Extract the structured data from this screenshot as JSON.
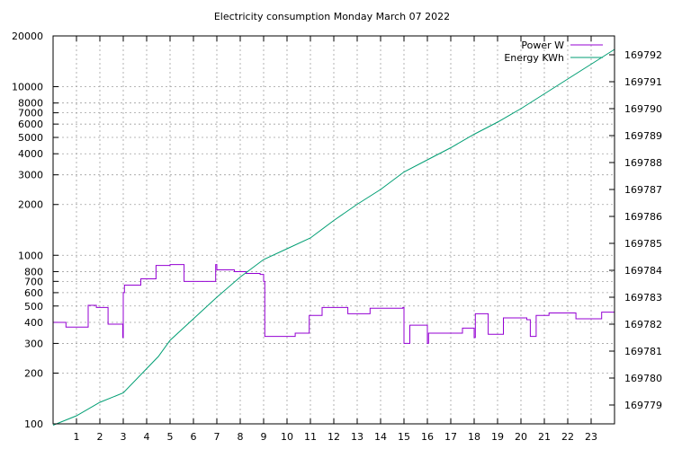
{
  "chart_data": {
    "type": "line",
    "title": "Electricity consumption Monday March 07 2022",
    "xlim": [
      0,
      24
    ],
    "x_ticks": [
      1,
      2,
      3,
      4,
      5,
      6,
      7,
      8,
      9,
      10,
      11,
      12,
      13,
      14,
      15,
      16,
      17,
      18,
      19,
      20,
      21,
      22,
      23
    ],
    "y_left": {
      "scale": "log",
      "ylim": [
        100,
        20000
      ],
      "ticks": [
        {
          "value": 100,
          "label": "100"
        },
        {
          "value": 200,
          "label": "200"
        },
        {
          "value": 300,
          "label": "300"
        },
        {
          "value": 400,
          "label": "400"
        },
        {
          "value": 500,
          "label": "500"
        },
        {
          "value": 600,
          "label": "600"
        },
        {
          "value": 700,
          "label": "700"
        },
        {
          "value": 800,
          "label": "800"
        },
        {
          "value": 1000,
          "label": "1000"
        },
        {
          "value": 2000,
          "label": "2000"
        },
        {
          "value": 3000,
          "label": "3000"
        },
        {
          "value": 4000,
          "label": "4000"
        },
        {
          "value": 5000,
          "label": "5000"
        },
        {
          "value": 6000,
          "label": "6000"
        },
        {
          "value": 7000,
          "label": "7000"
        },
        {
          "value": 8000,
          "label": "8000"
        },
        {
          "value": 10000,
          "label": "10000"
        },
        {
          "value": 20000,
          "label": "20000"
        }
      ]
    },
    "y_right": {
      "scale": "linear",
      "ylim": [
        169778.3,
        169792.7
      ],
      "ticks": [
        {
          "value": 169779,
          "label": "169779"
        },
        {
          "value": 169780,
          "label": "169780"
        },
        {
          "value": 169781,
          "label": "169781"
        },
        {
          "value": 169782,
          "label": "169782"
        },
        {
          "value": 169783,
          "label": "169783"
        },
        {
          "value": 169784,
          "label": "169784"
        },
        {
          "value": 169785,
          "label": "169785"
        },
        {
          "value": 169786,
          "label": "169786"
        },
        {
          "value": 169787,
          "label": "169787"
        },
        {
          "value": 169788,
          "label": "169788"
        },
        {
          "value": 169789,
          "label": "169789"
        },
        {
          "value": 169790,
          "label": "169790"
        },
        {
          "value": 169791,
          "label": "169791"
        },
        {
          "value": 169792,
          "label": "169792"
        }
      ]
    },
    "grid": true,
    "legend_position": "top-right",
    "series": [
      {
        "name": "Power W",
        "axis": "left",
        "style": "steps",
        "color": "#9400d3",
        "points": [
          [
            0,
            400
          ],
          [
            0.55,
            375
          ],
          [
            1.45,
            375
          ],
          [
            1.5,
            505
          ],
          [
            1.85,
            490
          ],
          [
            2.35,
            390
          ],
          [
            2.95,
            390
          ],
          [
            2.98,
            325
          ],
          [
            3.0,
            600
          ],
          [
            3.05,
            665
          ],
          [
            3.75,
            725
          ],
          [
            4.4,
            870
          ],
          [
            5.0,
            880
          ],
          [
            5.6,
            700
          ],
          [
            6.9,
            700
          ],
          [
            6.95,
            880
          ],
          [
            7.0,
            820
          ],
          [
            7.75,
            800
          ],
          [
            8.25,
            780
          ],
          [
            8.85,
            770
          ],
          [
            9.0,
            700
          ],
          [
            9.05,
            330
          ],
          [
            10.35,
            345
          ],
          [
            10.95,
            440
          ],
          [
            11.5,
            490
          ],
          [
            12.6,
            450
          ],
          [
            13.55,
            485
          ],
          [
            14.95,
            490
          ],
          [
            15.0,
            300
          ],
          [
            15.25,
            385
          ],
          [
            16.0,
            300
          ],
          [
            16.05,
            345
          ],
          [
            17.5,
            370
          ],
          [
            18.0,
            325
          ],
          [
            18.05,
            450
          ],
          [
            18.6,
            340
          ],
          [
            19.25,
            425
          ],
          [
            20.25,
            415
          ],
          [
            20.4,
            330
          ],
          [
            20.65,
            440
          ],
          [
            21.2,
            455
          ],
          [
            22.35,
            420
          ],
          [
            23.45,
            460
          ],
          [
            24,
            460
          ]
        ]
      },
      {
        "name": "Energy KWh",
        "axis": "right",
        "style": "line",
        "color": "#009e73",
        "points": [
          [
            0,
            169778.25
          ],
          [
            1.0,
            169778.6
          ],
          [
            2.0,
            169779.1
          ],
          [
            3.0,
            169779.45
          ],
          [
            4.0,
            169780.35
          ],
          [
            4.5,
            169780.8
          ],
          [
            5.0,
            169781.4
          ],
          [
            6.0,
            169782.2
          ],
          [
            7.0,
            169783.0
          ],
          [
            8.0,
            169783.75
          ],
          [
            9.0,
            169784.4
          ],
          [
            10.0,
            169784.8
          ],
          [
            11.0,
            169785.2
          ],
          [
            12.0,
            169785.85
          ],
          [
            13.0,
            169786.45
          ],
          [
            14.0,
            169787.0
          ],
          [
            15.0,
            169787.65
          ],
          [
            16.0,
            169788.1
          ],
          [
            17.0,
            169788.55
          ],
          [
            18.0,
            169789.05
          ],
          [
            19.0,
            169789.5
          ],
          [
            20.0,
            169790.0
          ],
          [
            21.0,
            169790.55
          ],
          [
            22.0,
            169791.1
          ],
          [
            23.0,
            169791.65
          ],
          [
            24,
            169792.2
          ]
        ]
      }
    ]
  }
}
